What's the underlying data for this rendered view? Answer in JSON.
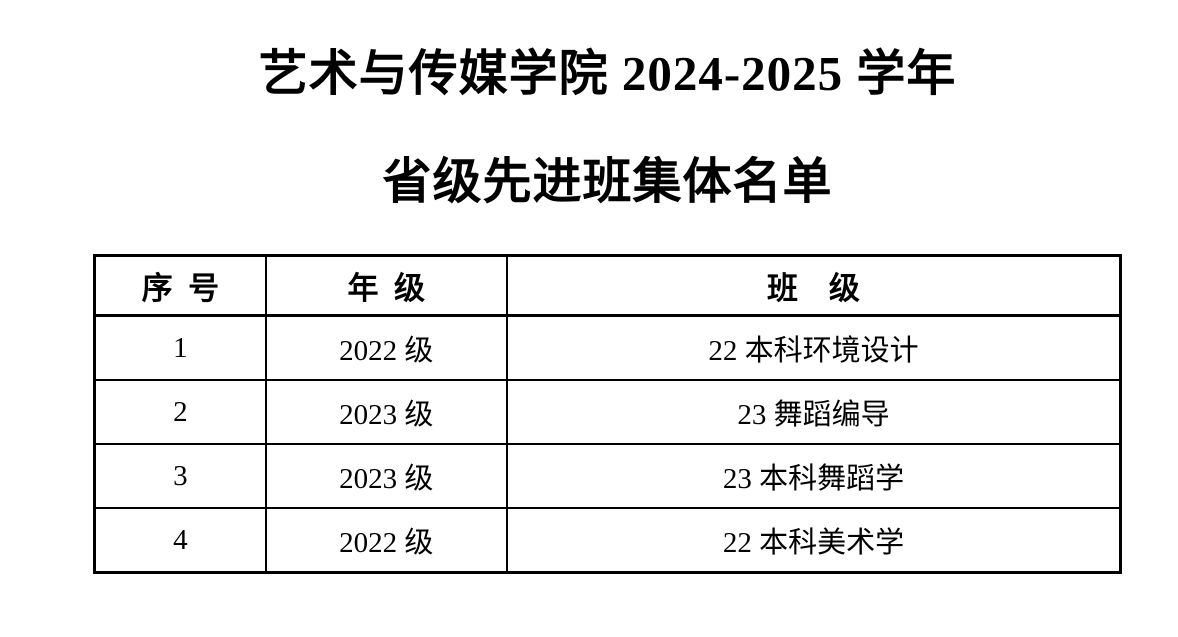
{
  "document": {
    "title_line1": "艺术与传媒学院 2024-2025 学年",
    "title_line2": "省级先进班集体名单"
  },
  "table": {
    "headers": [
      "序 号",
      "年 级",
      "班 级"
    ],
    "rows": [
      [
        "1",
        "2022 级",
        "22 本科环境设计"
      ],
      [
        "2",
        "2023 级",
        "23 舞蹈编导"
      ],
      [
        "3",
        "2023 级",
        "23 本科舞蹈学"
      ],
      [
        "4",
        "2022 级",
        "22 本科美术学"
      ]
    ]
  },
  "colors": {
    "text": "#000000",
    "border": "#000000",
    "background": "#ffffff"
  }
}
